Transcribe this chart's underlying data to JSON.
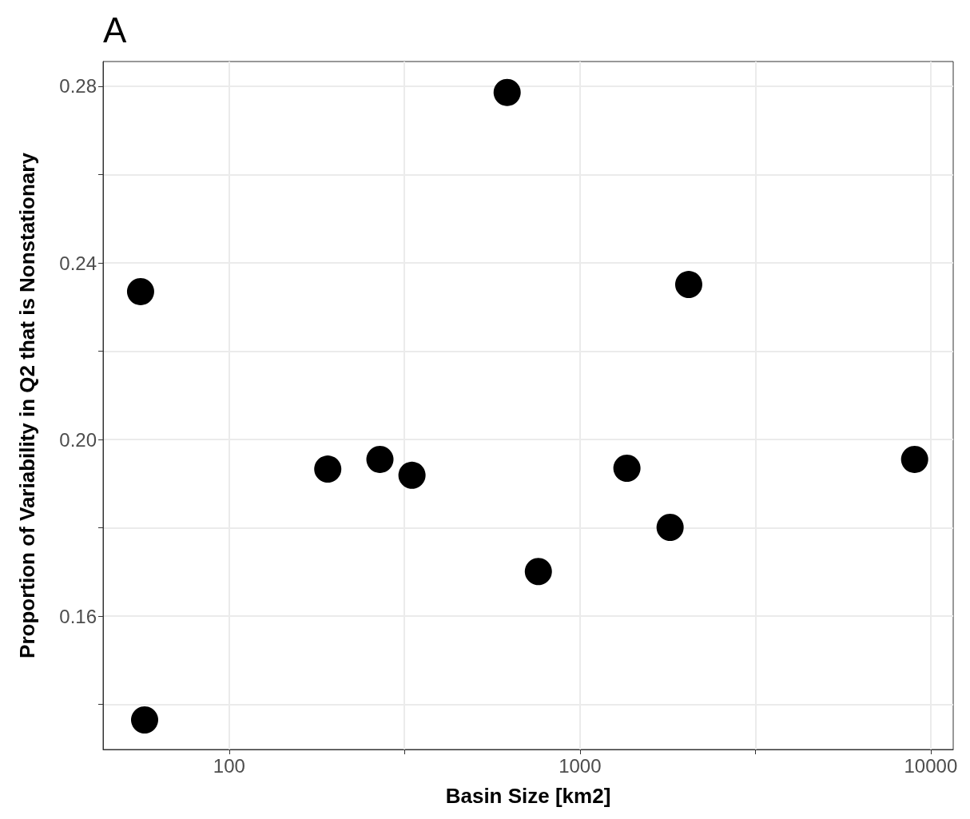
{
  "chart_data": {
    "type": "scatter",
    "title": "A",
    "xlabel": "Basin Size [km2]",
    "ylabel": "Proportion of Variability in Q2 that is Nonstationary",
    "x": [
      55.9,
      57.4,
      191,
      269,
      332,
      620,
      761,
      1361,
      1807,
      2042,
      8996
    ],
    "values": [
      0.2335,
      0.1365,
      0.1933,
      0.1955,
      0.1919,
      0.2786,
      0.1701,
      0.1935,
      0.1801,
      0.2351,
      0.1955
    ],
    "color": "#000000",
    "marker": "circle",
    "log": "x",
    "grid": true,
    "xlim": [
      43.7,
      11590
    ],
    "xticks": [
      100,
      {
        "value": 316,
        "label": null
      },
      1000,
      {
        "value": 3162,
        "label": null
      },
      10000
    ],
    "ylim": [
      0.1298,
      0.2856
    ],
    "yticks": [
      {
        "value": 0.14,
        "label": null
      },
      {
        "value": 0.16,
        "label": "0.16"
      },
      {
        "value": 0.18,
        "label": null
      },
      {
        "value": 0.2,
        "label": "0.20"
      },
      {
        "value": 0.22,
        "label": null
      },
      {
        "value": 0.24,
        "label": "0.24"
      },
      {
        "value": 0.26,
        "label": null
      },
      {
        "value": 0.28,
        "label": "0.28"
      }
    ]
  }
}
